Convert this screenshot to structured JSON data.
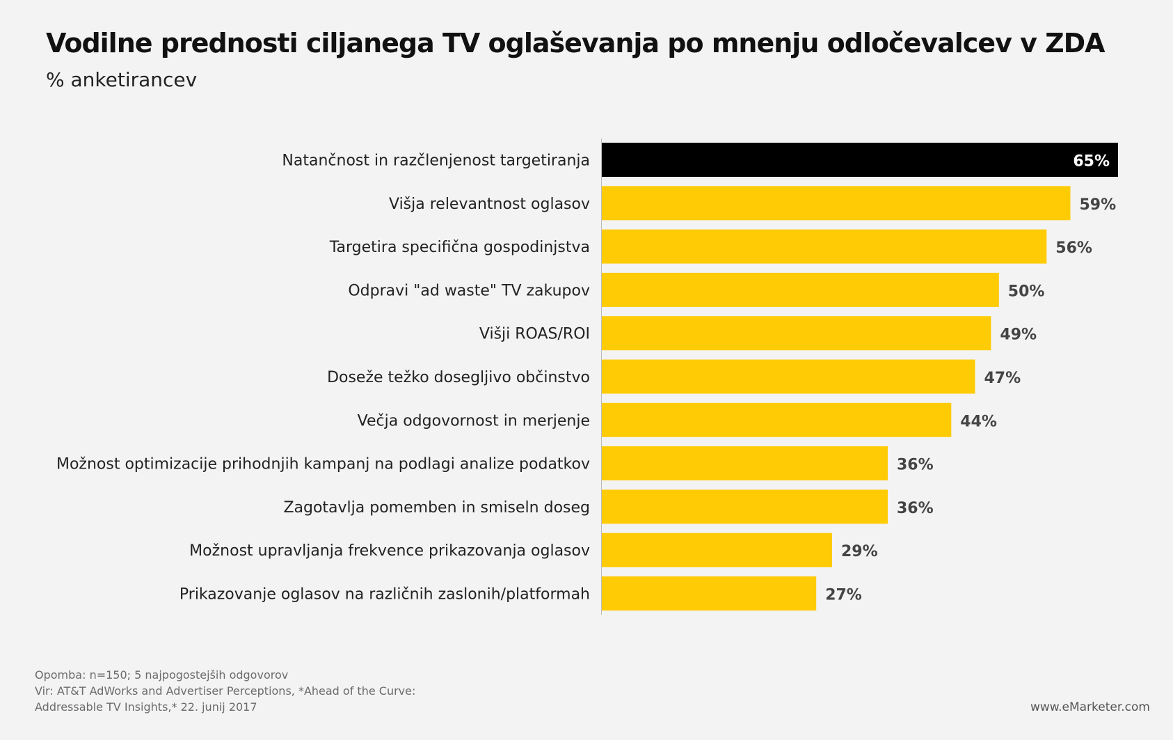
{
  "title": "Vodilne prednosti ciljanega TV oglaševanja po mnenju odločevalcev v ZDA",
  "subtitle": "% anketirancev",
  "colors": {
    "highlight": "#000000",
    "bar": "#ffcb05",
    "axis": "#bbbbbb"
  },
  "chart_data": {
    "type": "bar",
    "orientation": "horizontal",
    "title": "Vodilne prednosti ciljanega TV oglaševanja po mnenju odločevalcev v ZDA",
    "subtitle": "% anketirancev",
    "xlim": [
      0,
      65
    ],
    "grid": false,
    "categories": [
      "Natančnost in razčlenjenost targetiranja",
      "Višja relevantnost oglasov",
      "Targetira specifična gospodinjstva",
      "Odpravi \"ad waste\" TV zakupov",
      "Višji ROAS/ROI",
      "Doseže težko dosegljivo občinstvo",
      "Večja odgovornost in merjenje",
      "Možnost optimizacije prihodnjih kampanj na podlagi analize podatkov",
      "Zagotavlja pomemben in smiseln doseg",
      "Možnost upravljanja frekvence prikazovanja oglasov",
      "Prikazovanje oglasov na različnih zaslonih/platformah"
    ],
    "values": [
      65,
      59,
      56,
      50,
      49,
      47,
      44,
      36,
      36,
      29,
      27
    ],
    "value_labels": [
      "65%",
      "59%",
      "56%",
      "50%",
      "49%",
      "47%",
      "44%",
      "36%",
      "36%",
      "29%",
      "27%"
    ],
    "highlight_index": 0
  },
  "footnote": {
    "note": "Opomba: n=150; 5 najpogostejših odgovorov",
    "source_line1": "Vir: AT&T AdWorks and Advertiser Perceptions, *Ahead of the Curve:",
    "source_line2": "Addressable TV Insights,* 22. junij 2017"
  },
  "site": "www.eMarketer.com"
}
